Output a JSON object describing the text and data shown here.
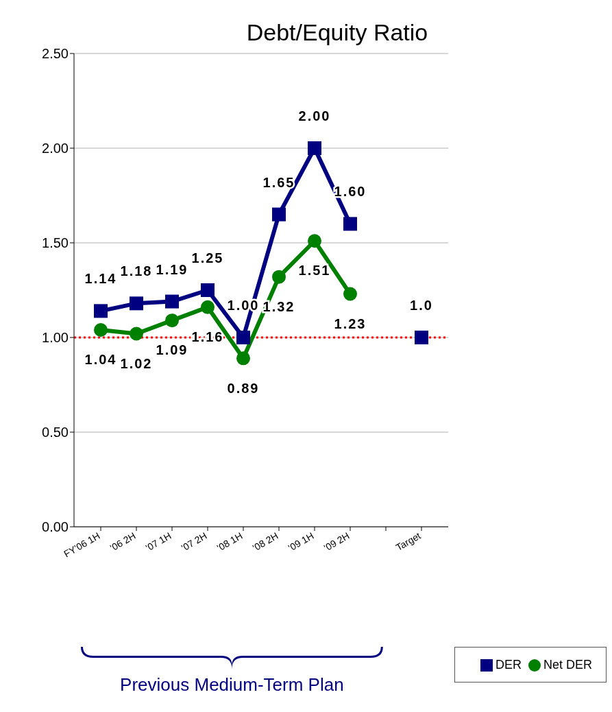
{
  "chart_data": {
    "type": "line",
    "title": "Debt/Equity Ratio",
    "categories": [
      "FY'06 1H",
      "'06 2H",
      "'07 1H",
      "'07 2H",
      "'08 1H",
      "'08 2H",
      "'09 1H",
      "'09 2H",
      null,
      "Target"
    ],
    "series": [
      {
        "name": "DER",
        "color": "#000080",
        "marker": "square",
        "values": [
          1.14,
          1.18,
          1.19,
          1.25,
          1.0,
          1.65,
          2.0,
          1.6,
          null,
          1.0
        ],
        "value_labels": [
          "1.14",
          "1.18",
          "1.19",
          "1.25",
          "1.00",
          "1.65",
          "2.00",
          "1.60",
          null,
          "1.0"
        ]
      },
      {
        "name": "Net DER",
        "color": "#008000",
        "marker": "circle",
        "values": [
          1.04,
          1.02,
          1.09,
          1.16,
          0.89,
          1.32,
          1.51,
          1.23,
          null,
          null
        ],
        "value_labels": [
          "1.04",
          "1.02",
          "1.09",
          "1.16",
          "0.89",
          "1.32",
          "1.51",
          "1.23",
          null,
          null
        ]
      }
    ],
    "ylim": [
      0,
      2.5
    ],
    "yticks": [
      {
        "value": 0,
        "label": "0.00"
      },
      {
        "value": 0.5,
        "label": "0.50"
      },
      {
        "value": 1,
        "label": "1.00"
      },
      {
        "value": 1.5,
        "label": "1.50"
      },
      {
        "value": 2,
        "label": "2.00"
      },
      {
        "value": 2.5,
        "label": "2.50"
      }
    ],
    "grid": "y",
    "legend": "bottom right",
    "ref_lines": [
      {
        "axis": "y",
        "value": 1.0,
        "color": "#ff0000",
        "line_style": "dotted"
      }
    ],
    "annotations": [
      "Previous Medium-Term Plan"
    ]
  }
}
